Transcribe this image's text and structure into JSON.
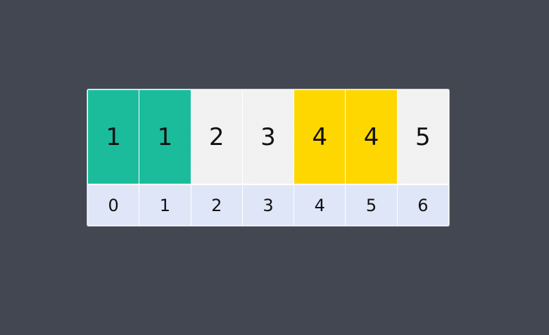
{
  "array": {
    "values": [
      {
        "label": "1",
        "color": "#1abc9c"
      },
      {
        "label": "1",
        "color": "#1abc9c"
      },
      {
        "label": "2",
        "color": "#f4f4f4"
      },
      {
        "label": "3",
        "color": "#f4f4f4"
      },
      {
        "label": "4",
        "color": "#ffd700"
      },
      {
        "label": "4",
        "color": "#ffd700"
      },
      {
        "label": "5",
        "color": "#f4f4f4"
      }
    ],
    "indices": [
      "0",
      "1",
      "2",
      "3",
      "4",
      "5",
      "6"
    ]
  }
}
